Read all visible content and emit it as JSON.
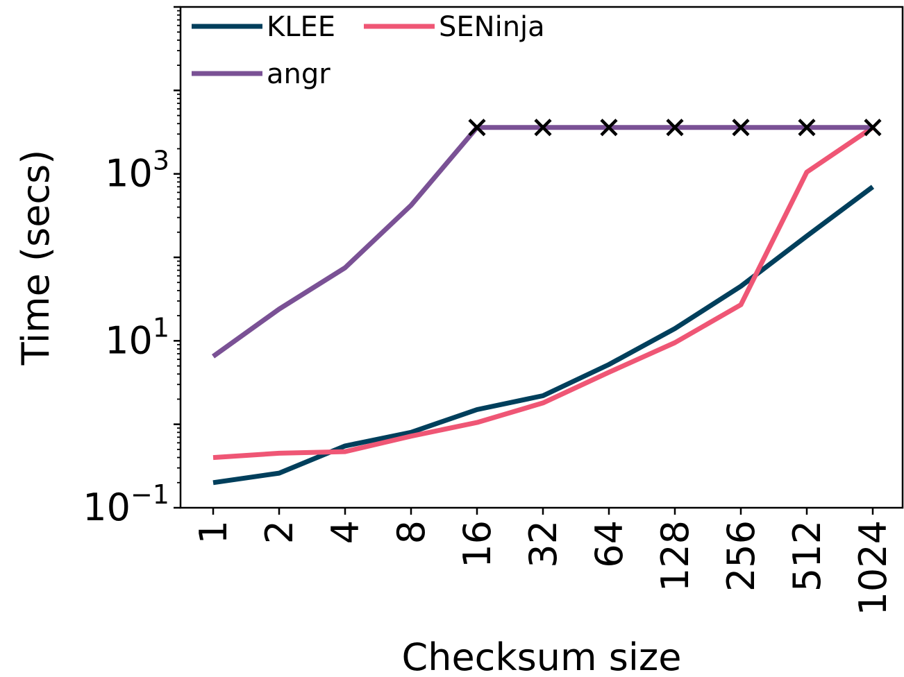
{
  "chart_data": {
    "type": "line",
    "title": "",
    "xlabel": "Checksum size",
    "ylabel": "Time (secs)",
    "yscale": "log",
    "ylim": [
      0.1,
      100000
    ],
    "yticks": [
      {
        "value": 0.1,
        "base": "10",
        "exp": "−1"
      },
      {
        "value": 10,
        "base": "10",
        "exp": "1"
      },
      {
        "value": 1000,
        "base": "10",
        "exp": "3"
      }
    ],
    "categories": [
      "1",
      "2",
      "4",
      "8",
      "16",
      "32",
      "64",
      "128",
      "256",
      "512",
      "1024"
    ],
    "series": [
      {
        "name": "KLEE",
        "color": "#003f5c",
        "values": [
          0.2,
          0.26,
          0.55,
          0.8,
          1.5,
          2.2,
          5.2,
          14,
          45,
          180,
          700
        ]
      },
      {
        "name": "SENinja",
        "color": "#ef5675",
        "values": [
          0.4,
          0.45,
          0.47,
          0.72,
          1.05,
          1.8,
          4.2,
          9.5,
          27,
          1050,
          3600
        ]
      },
      {
        "name": "angr",
        "color": "#7a5195",
        "values": [
          6.5,
          24,
          75,
          420,
          3600,
          3600,
          3600,
          3600,
          3600,
          3600,
          3600
        ]
      }
    ],
    "timeouts": {
      "series": "angr",
      "value": 3600,
      "marker": "×",
      "color": "#000000",
      "categories": [
        "16",
        "32",
        "64",
        "128",
        "256",
        "512",
        "1024"
      ]
    },
    "legend": {
      "position": "top-left",
      "columns": 2
    }
  }
}
